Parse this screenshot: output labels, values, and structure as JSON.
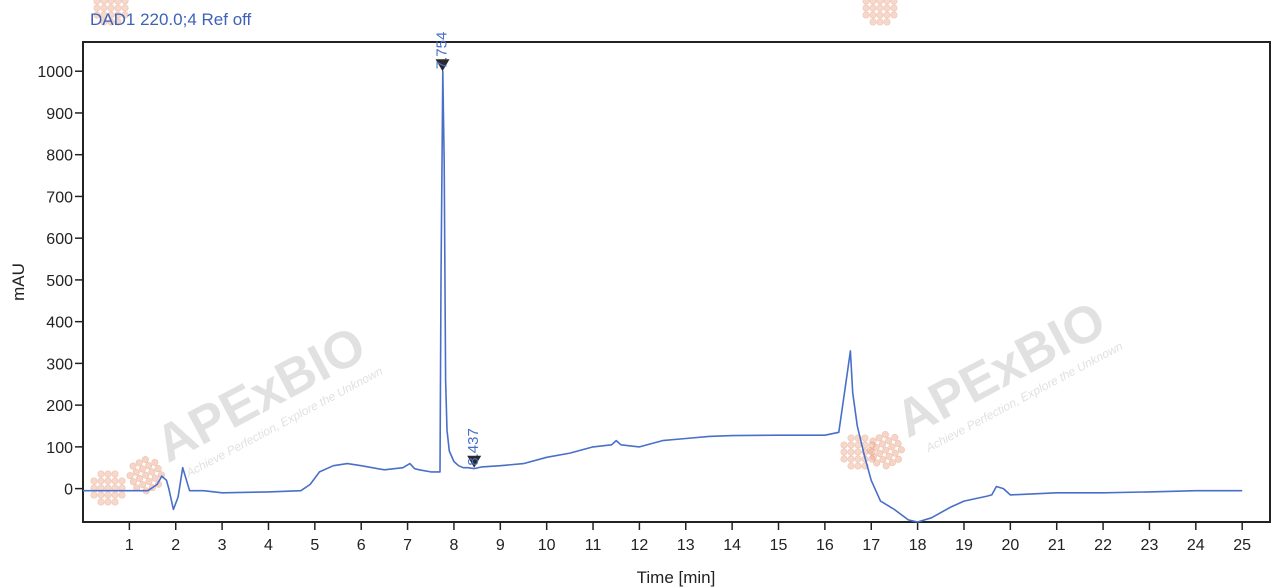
{
  "chart_data": {
    "type": "line",
    "title": "DAD1 220.0;4 Ref off",
    "xlabel": "Time [min]",
    "ylabel": "mAU",
    "xlim": [
      0,
      25.6
    ],
    "ylim": [
      -80,
      1070
    ],
    "x_ticks": [
      1,
      2,
      3,
      4,
      5,
      6,
      7,
      8,
      9,
      10,
      11,
      12,
      13,
      14,
      15,
      16,
      17,
      18,
      19,
      20,
      21,
      22,
      23,
      24,
      25
    ],
    "y_ticks": [
      0,
      100,
      200,
      300,
      400,
      500,
      600,
      700,
      800,
      900,
      1000
    ],
    "grid": false,
    "series": [
      {
        "color": "#4a6fc9",
        "x": [
          0.0,
          0.5,
          1.0,
          1.4,
          1.6,
          1.7,
          1.8,
          1.85,
          1.95,
          2.05,
          2.15,
          2.3,
          2.6,
          3.0,
          4.0,
          4.7,
          4.9,
          5.1,
          5.4,
          5.7,
          6.0,
          6.5,
          6.9,
          7.05,
          7.15,
          7.25,
          7.5,
          7.7,
          7.72,
          7.76,
          7.79,
          7.82,
          7.85,
          7.9,
          8.0,
          8.1,
          8.2,
          8.3,
          8.437,
          8.6,
          9.0,
          9.5,
          10.0,
          10.5,
          11.0,
          11.4,
          11.5,
          11.6,
          12.0,
          12.5,
          13.0,
          13.5,
          14.0,
          15.0,
          16.0,
          16.3,
          16.45,
          16.55,
          16.6,
          16.7,
          16.85,
          17.0,
          17.2,
          17.5,
          17.8,
          18.0,
          18.3,
          18.7,
          19.0,
          19.5,
          19.6,
          19.7,
          19.85,
          20.0,
          21.0,
          22.0,
          23.0,
          24.0,
          25.0
        ],
        "y": [
          -5,
          -5,
          -5,
          -5,
          10,
          30,
          20,
          0,
          -50,
          -20,
          50,
          -5,
          -5,
          -10,
          -8,
          -5,
          10,
          40,
          55,
          60,
          55,
          45,
          50,
          60,
          48,
          45,
          40,
          40,
          500,
          1000,
          780,
          260,
          140,
          90,
          65,
          55,
          50,
          50,
          48,
          52,
          55,
          60,
          75,
          85,
          100,
          105,
          115,
          105,
          100,
          115,
          120,
          125,
          127,
          128,
          128,
          135,
          250,
          330,
          230,
          150,
          80,
          20,
          -30,
          -50,
          -75,
          -80,
          -70,
          -45,
          -30,
          -18,
          -15,
          5,
          0,
          -15,
          -10,
          -10,
          -8,
          -5,
          -5
        ]
      }
    ],
    "annotations": [
      {
        "label": "7.754",
        "x": 7.754,
        "y": 1000
      },
      {
        "label": "8.437",
        "x": 8.437,
        "y": 50
      }
    ],
    "watermarks": [
      {
        "brand": "APExBIO",
        "slogan": "Achieve Perfection, Explore the Unknown"
      }
    ]
  }
}
